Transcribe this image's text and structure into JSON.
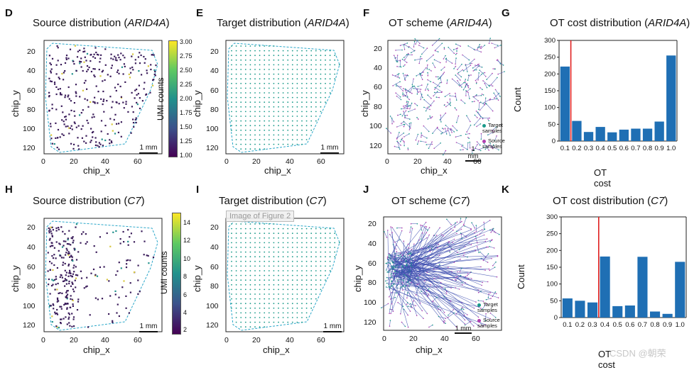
{
  "panels": {
    "D": {
      "letter": "D",
      "title_pre": "Source distribution (",
      "title_gene": "ARID4A",
      "title_post": ")",
      "xlabel": "chip_x",
      "ylabel": "chip_y",
      "scale": "1 mm",
      "xticks": [
        "0",
        "20",
        "40",
        "60"
      ],
      "yticks": [
        "20",
        "40",
        "60",
        "80",
        "100",
        "120"
      ]
    },
    "E": {
      "letter": "E",
      "title_pre": "Target distribution (",
      "title_gene": "ARID4A",
      "title_post": ")",
      "xlabel": "chip_x",
      "ylabel": "chip_y",
      "scale": "1 mm",
      "xticks": [
        "0",
        "20",
        "40",
        "60"
      ],
      "yticks": [
        "20",
        "40",
        "60",
        "80",
        "100",
        "120"
      ]
    },
    "F": {
      "letter": "F",
      "title_pre": "OT scheme (",
      "title_gene": "ARID4A",
      "title_post": ")",
      "xlabel": "chip_x",
      "ylabel": "chip_y",
      "scale": "1 mm",
      "xticks": [
        "0",
        "20",
        "40",
        "60"
      ],
      "yticks": [
        "20",
        "40",
        "60",
        "80",
        "100",
        "120"
      ],
      "legend_target": "Target samples",
      "legend_source": "Source samples"
    },
    "G": {
      "letter": "G",
      "title_pre": "OT cost distribution (",
      "title_gene": "ARID4A",
      "title_post": ")",
      "xlabel": "OT cost",
      "ylabel": "Count"
    },
    "H": {
      "letter": "H",
      "title_pre": "Source distribution (",
      "title_gene": "C7",
      "title_post": ")",
      "xlabel": "chip_x",
      "ylabel": "chip_y",
      "scale": "1 mm",
      "xticks": [
        "0",
        "20",
        "40",
        "60"
      ],
      "yticks": [
        "20",
        "40",
        "60",
        "80",
        "100",
        "120"
      ]
    },
    "I": {
      "letter": "I",
      "title_pre": "Target distribution (",
      "title_gene": "C7",
      "title_post": ")",
      "xlabel": "chip_x",
      "ylabel": "chip_y",
      "scale": "1 mm",
      "xticks": [
        "0",
        "20",
        "40",
        "60"
      ],
      "yticks": [
        "20",
        "40",
        "60",
        "80",
        "100",
        "120"
      ]
    },
    "J": {
      "letter": "J",
      "title_pre": "OT scheme (",
      "title_gene": "C7",
      "title_post": ")",
      "xlabel": "chip_x",
      "ylabel": "chip_y",
      "scale": "1 mm",
      "xticks": [
        "0",
        "20",
        "40",
        "60"
      ],
      "yticks": [
        "20",
        "40",
        "60",
        "80",
        "100",
        "120"
      ],
      "legend_target": "Target samples",
      "legend_source": "Source samples"
    },
    "K": {
      "letter": "K",
      "title_pre": "OT cost distribution (",
      "title_gene": "C7",
      "title_post": ")",
      "xlabel": "OT cost",
      "ylabel": "Count"
    }
  },
  "colorbars": {
    "D": {
      "label": "UMI counts",
      "ticks": [
        "3.00",
        "2.75",
        "2.50",
        "2.25",
        "2.00",
        "1.75",
        "1.50",
        "1.25",
        "1.00"
      ]
    },
    "H": {
      "label": "UMI counts",
      "ticks": [
        "14",
        "12",
        "10",
        "8",
        "6",
        "4",
        "2"
      ]
    }
  },
  "chart_data": [
    {
      "panel": "G",
      "type": "bar",
      "categories": [
        "0.1",
        "0.2",
        "0.3",
        "0.4",
        "0.5",
        "0.6",
        "0.7",
        "0.8",
        "0.9",
        "1.0"
      ],
      "values": [
        222,
        60,
        27,
        42,
        26,
        34,
        37,
        37,
        58,
        255
      ],
      "ylim": [
        0,
        300
      ],
      "yticks": [
        "0",
        "50",
        "100",
        "150",
        "200",
        "250",
        "300"
      ],
      "threshold": 0.15,
      "bar_color": "#1f6fb4",
      "line_color": "#e02020"
    },
    {
      "panel": "K",
      "type": "bar",
      "categories": [
        "0.1",
        "0.2",
        "0.3",
        "0.4",
        "0.5",
        "0.6",
        "0.7",
        "0.8",
        "0.9",
        "1.0"
      ],
      "values": [
        57,
        50,
        45,
        182,
        34,
        36,
        181,
        18,
        11,
        166
      ],
      "ylim": [
        0,
        300
      ],
      "yticks": [
        "0",
        "50",
        "100",
        "150",
        "200",
        "250",
        "300"
      ],
      "threshold": 0.35,
      "bar_color": "#1f6fb4",
      "line_color": "#e02020"
    }
  ],
  "overlay_text": "Image of Figure 2",
  "watermark": "CSDN @朝荣",
  "colors": {
    "hull": "#2aa7c9",
    "target_dot": "#1a9a8a",
    "source_dot": "#b040b0",
    "arrow": "#3f4fb0",
    "bar": "#1f6fb4",
    "threshold": "#e02020"
  }
}
